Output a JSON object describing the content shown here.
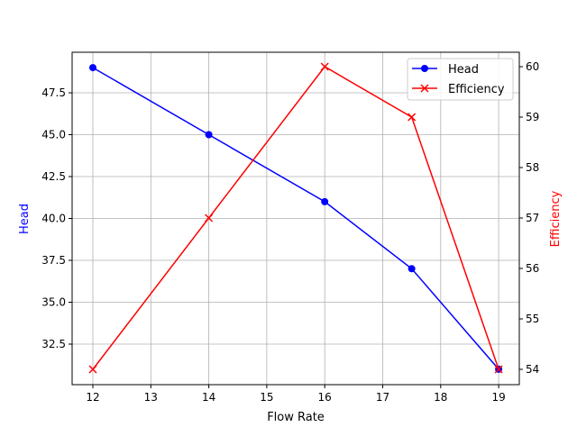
{
  "chart_data": {
    "type": "line",
    "title": "",
    "xlabel": "Flow Rate",
    "ylabel": "Head",
    "ylabel_right": "Efficiency",
    "x": [
      12,
      14,
      16,
      17.5,
      19
    ],
    "xlim": [
      11.65,
      19.35
    ],
    "ylim": [
      30.1,
      49.9
    ],
    "ylim_right": [
      53.7,
      60.3
    ],
    "x_ticks": [
      "12",
      "13",
      "14",
      "15",
      "16",
      "17",
      "18",
      "19"
    ],
    "y_ticks": [
      "32.5",
      "35.0",
      "37.5",
      "40.0",
      "42.5",
      "45.0",
      "47.5"
    ],
    "y_ticks_right": [
      "54",
      "55",
      "56",
      "57",
      "58",
      "59",
      "60"
    ],
    "grid": true,
    "legend_position": "upper right",
    "series": [
      {
        "name": "Head",
        "axis": "left",
        "color": "#0000ff",
        "marker": "o",
        "values": [
          49,
          45,
          41,
          37,
          31
        ]
      },
      {
        "name": "Efficiency",
        "axis": "right",
        "color": "#ff0000",
        "marker": "x",
        "values": [
          54,
          57,
          60,
          59,
          54
        ]
      }
    ]
  }
}
